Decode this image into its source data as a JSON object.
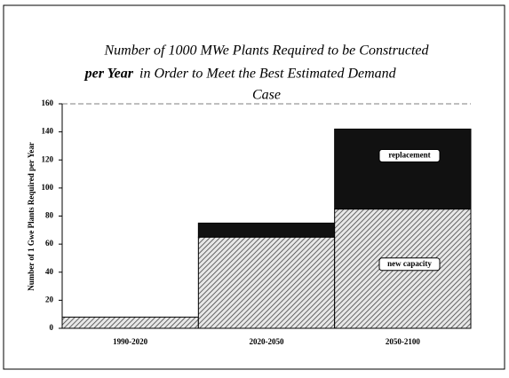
{
  "chart_data": {
    "type": "stacked_bar",
    "title": [
      "Number of 1000 MWe Plants Required to be Constructed",
      "per Year",
      "in Order to Meet the Best Estimated Demand",
      "Case"
    ],
    "y_label": "Number of 1 Gwe Plants Required per Year",
    "categories": [
      "1990-2020",
      "2020-2050",
      "2050-2100"
    ],
    "series": [
      {
        "name": "new capacity",
        "color": "#444444",
        "values": [
          8,
          65,
          85
        ]
      },
      {
        "name": "replacement",
        "color": "#111111",
        "values": [
          0,
          10,
          57
        ]
      }
    ],
    "ylim": [
      0,
      160
    ],
    "yticks": [
      0,
      20,
      40,
      60,
      80,
      100,
      120,
      140,
      160
    ]
  }
}
